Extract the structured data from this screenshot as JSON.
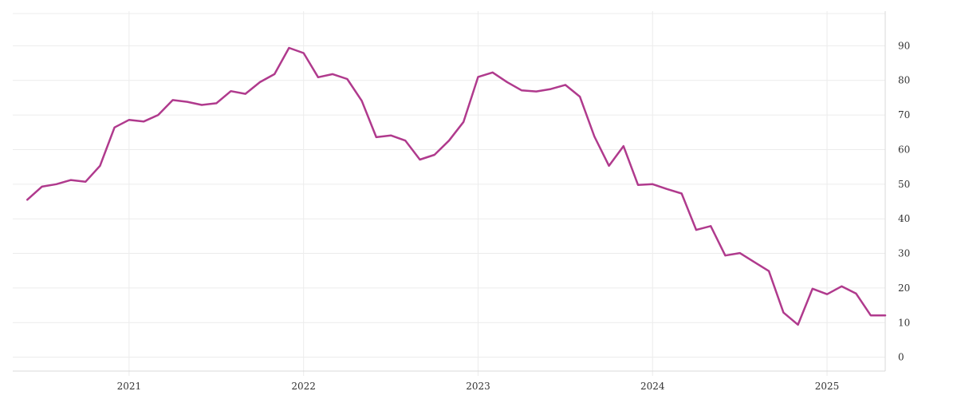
{
  "chart_data": {
    "type": "line",
    "title": "",
    "xlabel": "",
    "ylabel": "",
    "x_ticks": [
      "2021",
      "2022",
      "2023",
      "2024",
      "2025"
    ],
    "y_ticks": [
      0,
      10,
      20,
      30,
      40,
      50,
      60,
      70,
      80,
      90
    ],
    "ylim": [
      -4,
      100
    ],
    "xlim": [
      "2020-05",
      "2025-05"
    ],
    "grid": true,
    "y_axis_side": "right",
    "series": [
      {
        "color": "#b03a8d",
        "x": [
          "2020-06",
          "2020-07",
          "2020-08",
          "2020-09",
          "2020-10",
          "2020-11",
          "2020-12",
          "2021-01",
          "2021-02",
          "2021-03",
          "2021-04",
          "2021-05",
          "2021-06",
          "2021-07",
          "2021-08",
          "2021-09",
          "2021-10",
          "2021-11",
          "2021-12",
          "2022-01",
          "2022-02",
          "2022-03",
          "2022-04",
          "2022-05",
          "2022-06",
          "2022-07",
          "2022-08",
          "2022-09",
          "2022-10",
          "2022-11",
          "2022-12",
          "2023-01",
          "2023-02",
          "2023-03",
          "2023-04",
          "2023-05",
          "2023-06",
          "2023-07",
          "2023-08",
          "2023-09",
          "2023-10",
          "2023-11",
          "2023-12",
          "2024-01",
          "2024-02",
          "2024-03",
          "2024-04",
          "2024-05",
          "2024-06",
          "2024-07",
          "2024-08",
          "2024-09",
          "2024-10",
          "2024-11",
          "2024-12",
          "2025-01",
          "2025-02",
          "2025-03",
          "2025-04",
          "2025-05"
        ],
        "values": [
          45.5,
          49.3,
          50.0,
          51.2,
          50.7,
          55.3,
          66.4,
          68.6,
          68.1,
          70.0,
          74.3,
          73.8,
          72.9,
          73.4,
          76.9,
          76.1,
          79.5,
          81.8,
          89.4,
          87.9,
          80.9,
          81.8,
          80.4,
          74.1,
          63.6,
          64.1,
          62.6,
          57.1,
          58.5,
          62.6,
          68.0,
          81.0,
          82.3,
          79.5,
          77.1,
          76.8,
          77.5,
          78.7,
          75.3,
          63.8,
          55.3,
          61.0,
          49.8,
          50.0,
          48.6,
          47.3,
          36.8,
          37.9,
          29.4,
          30.1,
          27.5,
          24.9,
          12.9,
          9.4,
          19.8,
          18.2,
          20.5,
          18.4,
          12.1,
          12.1
        ]
      }
    ]
  }
}
